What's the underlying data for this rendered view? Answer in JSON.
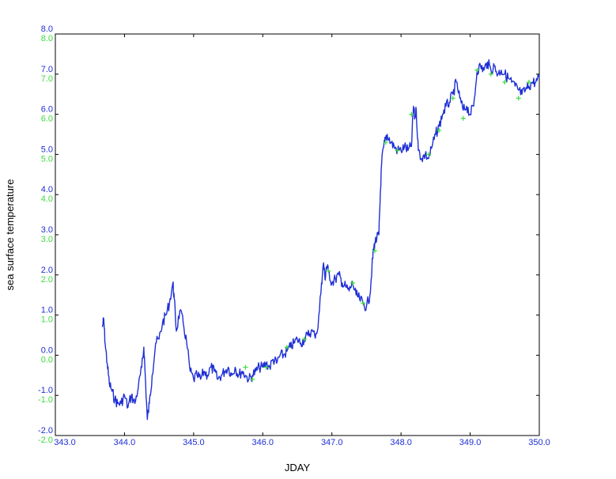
{
  "colors": {
    "primary_series": "#1f2fd6",
    "secondary_series": "#3ddc3d",
    "primary_ticks": "#1f2fd6",
    "secondary_ticks": "#3ddc3d",
    "axes": "#000000",
    "background": "#ffffff"
  },
  "chart_data": {
    "type": "line",
    "xlabel": "JDAY",
    "ylabel": "sea surface temperature",
    "xlim": [
      343.0,
      350.0
    ],
    "ylim": [
      -2.0,
      8.0
    ],
    "grid": false,
    "x_ticks": [
      "343.0",
      "344.0",
      "345.0",
      "346.0",
      "347.0",
      "348.0",
      "349.0",
      "350.0"
    ],
    "y_ticks_primary": [
      "-2.0",
      "-1.0",
      "0.0",
      "1.0",
      "2.0",
      "3.0",
      "4.0",
      "5.0",
      "6.0",
      "7.0",
      "8.0"
    ],
    "y_ticks_secondary": [
      "-2.0",
      "-1.0",
      "0.0",
      "1.0",
      "2.0",
      "3.0",
      "4.0",
      "5.0",
      "6.0",
      "7.0",
      "8.0"
    ],
    "series": [
      {
        "style": "line",
        "x": [
          343.68,
          343.7,
          343.72,
          343.75,
          343.78,
          343.82,
          343.86,
          343.9,
          343.95,
          344.0,
          344.05,
          344.1,
          344.15,
          344.2,
          344.25,
          344.28,
          344.3,
          344.33,
          344.36,
          344.4,
          344.45,
          344.5,
          344.55,
          344.6,
          344.65,
          344.7,
          344.72,
          344.75,
          344.8,
          344.85,
          344.9,
          344.95,
          345.0,
          345.05,
          345.1,
          345.15,
          345.2,
          345.25,
          345.3,
          345.35,
          345.4,
          345.45,
          345.5,
          345.55,
          345.6,
          345.65,
          345.7,
          345.75,
          345.8,
          345.85,
          345.9,
          345.95,
          346.0,
          346.05,
          346.1,
          346.15,
          346.2,
          346.25,
          346.3,
          346.35,
          346.4,
          346.45,
          346.5,
          346.55,
          346.6,
          346.65,
          346.7,
          346.75,
          346.8,
          346.85,
          346.88,
          346.9,
          346.92,
          346.95,
          347.0,
          347.05,
          347.1,
          347.15,
          347.2,
          347.25,
          347.3,
          347.35,
          347.4,
          347.45,
          347.5,
          347.55,
          347.58,
          347.6,
          347.62,
          347.65,
          347.68,
          347.7,
          347.72,
          347.75,
          347.78,
          347.8,
          347.85,
          347.9,
          347.95,
          348.0,
          348.05,
          348.1,
          348.15,
          348.18,
          348.2,
          348.22,
          348.25,
          348.3,
          348.35,
          348.4,
          348.45,
          348.5,
          348.55,
          348.6,
          348.65,
          348.7,
          348.75,
          348.8,
          348.85,
          348.9,
          348.95,
          349.0,
          349.05,
          349.1,
          349.15,
          349.2,
          349.25,
          349.3,
          349.35,
          349.4,
          349.45,
          349.5,
          349.55,
          349.6,
          349.65,
          349.7,
          349.75,
          349.8,
          349.85,
          349.9,
          349.95,
          350.0
        ],
        "y": [
          0.7,
          0.9,
          0.3,
          -0.2,
          -0.7,
          -0.9,
          -1.1,
          -1.2,
          -1.2,
          -1.0,
          -1.3,
          -1.0,
          -1.2,
          -0.8,
          -0.3,
          0.2,
          -0.5,
          -1.6,
          -1.2,
          -0.5,
          0.3,
          0.4,
          0.8,
          1.0,
          1.3,
          1.8,
          1.4,
          0.6,
          1.1,
          0.8,
          0.3,
          -0.4,
          -0.6,
          -0.5,
          -0.6,
          -0.4,
          -0.5,
          -0.3,
          -0.4,
          -0.6,
          -0.5,
          -0.4,
          -0.3,
          -0.5,
          -0.3,
          -0.5,
          -0.4,
          -0.5,
          -0.6,
          -0.5,
          -0.4,
          -0.3,
          -0.3,
          -0.2,
          -0.3,
          -0.1,
          -0.2,
          0.0,
          0.0,
          0.1,
          0.2,
          0.3,
          0.4,
          0.3,
          0.4,
          0.5,
          0.6,
          0.5,
          0.7,
          1.8,
          2.3,
          1.9,
          2.2,
          2.1,
          1.8,
          1.9,
          2.0,
          1.8,
          1.7,
          1.6,
          1.8,
          1.5,
          1.4,
          1.3,
          1.2,
          1.5,
          2.2,
          2.6,
          2.8,
          2.9,
          3.0,
          4.0,
          4.8,
          5.2,
          5.4,
          5.5,
          5.3,
          5.2,
          5.1,
          5.1,
          5.2,
          5.1,
          5.2,
          6.2,
          5.9,
          6.1,
          5.1,
          4.9,
          5.0,
          4.9,
          5.2,
          5.5,
          5.7,
          6.0,
          6.2,
          6.3,
          6.5,
          6.8,
          6.4,
          6.1,
          6.2,
          6.0,
          6.2,
          7.1,
          7.2,
          7.1,
          7.3,
          7.1,
          7.2,
          7.0,
          7.1,
          7.0,
          6.9,
          6.8,
          6.7,
          6.6,
          6.5,
          6.6,
          6.7,
          6.8,
          6.8,
          6.9
        ]
      },
      {
        "style": "markers",
        "x": [
          345.75,
          345.85,
          346.05,
          346.35,
          346.6,
          346.95,
          347.3,
          347.45,
          347.62,
          347.78,
          347.95,
          348.15,
          348.4,
          348.55,
          348.75,
          348.9,
          349.1,
          349.3,
          349.5,
          349.7,
          349.85
        ],
        "y": [
          -0.3,
          -0.6,
          -0.3,
          0.2,
          0.4,
          2.1,
          1.8,
          1.3,
          2.6,
          5.3,
          5.1,
          6.0,
          5.0,
          5.6,
          6.4,
          5.9,
          7.1,
          7.0,
          6.8,
          6.4,
          6.8
        ]
      }
    ]
  }
}
